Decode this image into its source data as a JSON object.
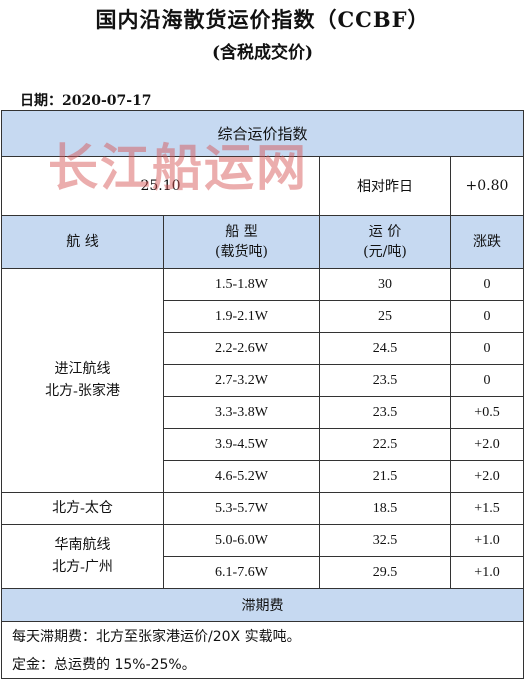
{
  "header": {
    "title": "国内沿海散货运价指数（CCBF）",
    "subtitle": "(含税成交价)"
  },
  "date_line": "日期：2020-07-17",
  "index": {
    "banner": "综合运价指数",
    "value": "25.10",
    "compare_label": "相对昨日",
    "change": "+0.80"
  },
  "columns": {
    "route": "航  线",
    "ship_line1": "船  型",
    "ship_line2": "(载货吨)",
    "price_line1": "运  价",
    "price_line2": "(元/吨)",
    "change": "涨跌"
  },
  "groups": [
    {
      "route_line1": "进江航线",
      "route_line2": "北方-张家港",
      "rows": [
        {
          "ship": "1.5-1.8W",
          "price": "30",
          "change": "0"
        },
        {
          "ship": "1.9-2.1W",
          "price": "25",
          "change": "0"
        },
        {
          "ship": "2.2-2.6W",
          "price": "24.5",
          "change": "0"
        },
        {
          "ship": "2.7-3.2W",
          "price": "23.5",
          "change": "0"
        },
        {
          "ship": "3.3-3.8W",
          "price": "23.5",
          "change": "+0.5"
        },
        {
          "ship": "3.9-4.5W",
          "price": "22.5",
          "change": "+2.0"
        },
        {
          "ship": "4.6-5.2W",
          "price": "21.5",
          "change": "+2.0"
        }
      ]
    },
    {
      "route_line1": "北方-太仓",
      "route_line2": "",
      "rows": [
        {
          "ship": "5.3-5.7W",
          "price": "18.5",
          "change": "+1.5"
        }
      ]
    },
    {
      "route_line1": "华南航线",
      "route_line2": "北方-广州",
      "rows": [
        {
          "ship": "5.0-6.0W",
          "price": "32.5",
          "change": "+1.0"
        },
        {
          "ship": "6.1-7.6W",
          "price": "29.5",
          "change": "+1.0"
        }
      ]
    }
  ],
  "demurrage": {
    "banner": "滞期费",
    "note1": "每天滞期费：北方至张家港运价/20X 实载吨。",
    "note2": "定金：总运费的 15%-25%。"
  },
  "watermark": "长江船运网",
  "colors": {
    "header_fill": "#c6d9f1",
    "watermark": "#d65454"
  }
}
